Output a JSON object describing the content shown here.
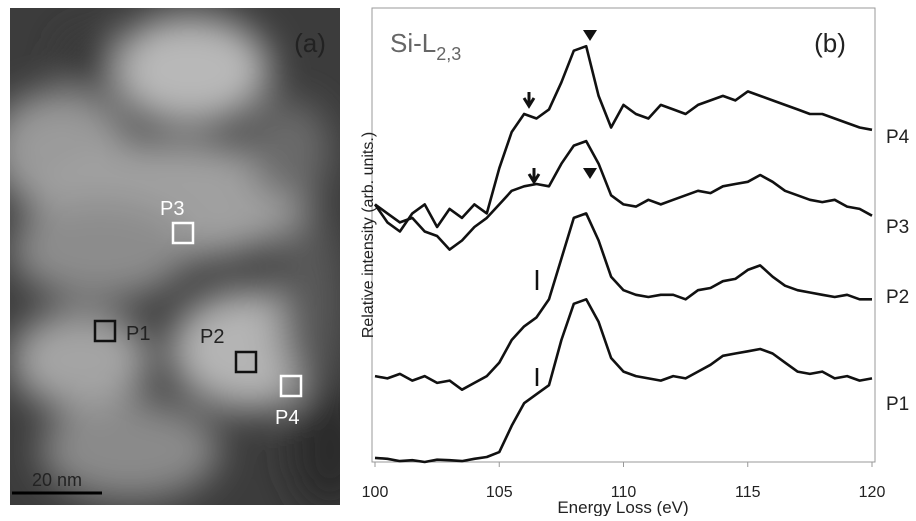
{
  "image_panel": {
    "label": "(a)",
    "markers": [
      "P1",
      "P2",
      "P3",
      "P4"
    ],
    "scale_bar": "20 nm"
  },
  "chart_data": {
    "type": "line",
    "element_label": "Si-L",
    "edge_label": "2,3",
    "panel_label": "(b)",
    "x_label": "Energy Loss (eV)",
    "y_label": "Relative intensity (arb. units.)",
    "xlim": [
      100,
      120
    ],
    "xticks": [
      100,
      105,
      110,
      115,
      120
    ],
    "ylim": [
      0,
      100
    ],
    "x": [
      100,
      100.5,
      101,
      101.5,
      102,
      102.5,
      103,
      103.5,
      104,
      104.5,
      105,
      105.5,
      106,
      106.5,
      107,
      107.5,
      108,
      108.5,
      109,
      109.5,
      110,
      110.5,
      111,
      111.5,
      112,
      112.5,
      113,
      113.5,
      114,
      114.5,
      115,
      115.5,
      116,
      116.5,
      117,
      117.5,
      118,
      118.5,
      119,
      119.5,
      120
    ],
    "series": [
      {
        "name": "P1",
        "color": "#111111",
        "values": [
          0.9,
          0.7,
          0.2,
          0.4,
          0,
          0.5,
          0.4,
          0.2,
          0.7,
          1.1,
          2.2,
          8,
          13,
          15,
          17,
          27,
          35,
          36,
          31,
          23,
          20,
          19,
          18.5,
          18,
          19,
          18.5,
          20,
          21.5,
          23.5,
          24,
          24.5,
          25,
          24,
          22,
          20,
          19.5,
          20,
          18.5,
          19,
          18,
          18.5
        ]
      },
      {
        "name": "P2",
        "color": "#111111",
        "values": [
          19,
          18.5,
          19.5,
          18,
          19,
          17.5,
          18,
          16,
          17.5,
          19,
          22,
          27,
          30,
          32,
          36,
          45,
          54,
          55,
          49,
          41,
          38,
          37,
          36.5,
          37,
          37,
          36,
          38,
          38.5,
          40,
          40.5,
          42.5,
          43.5,
          41,
          39,
          38,
          37.5,
          37,
          36.5,
          37,
          36,
          36
        ]
      },
      {
        "name": "P3",
        "color": "#111111",
        "values": [
          57,
          55,
          53,
          54,
          51,
          50,
          47,
          49,
          52,
          54,
          57,
          60,
          61,
          61.5,
          61,
          66,
          70,
          71,
          66,
          59,
          57,
          56.5,
          58,
          57,
          58,
          59,
          60,
          59.5,
          61,
          61.5,
          62,
          63.5,
          62,
          60,
          59,
          58,
          57.5,
          58,
          56.5,
          56,
          54.5
        ]
      },
      {
        "name": "P4",
        "color": "#111111",
        "values": [
          57,
          53,
          51,
          55,
          57,
          52,
          56,
          54,
          57,
          55,
          65,
          73,
          77,
          76,
          78,
          84,
          91,
          92,
          81,
          74,
          79,
          77,
          76,
          79,
          78,
          77,
          79,
          80,
          81,
          80,
          82,
          81,
          80,
          79,
          78,
          77,
          77,
          76,
          75,
          74,
          73.5
        ]
      }
    ]
  }
}
